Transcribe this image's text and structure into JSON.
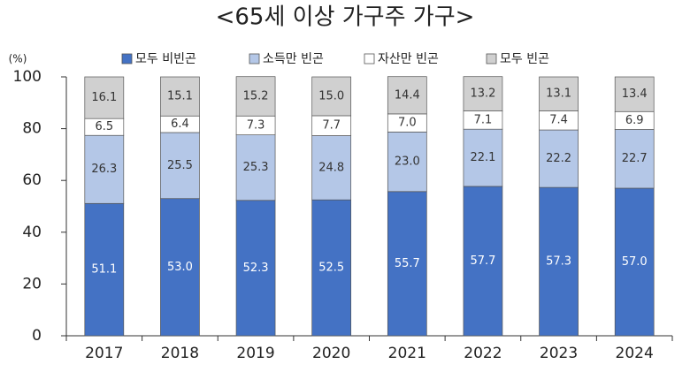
{
  "chart_data": {
    "type": "stacked_bar",
    "title": "<65세 이상 가구주 가구>",
    "y_label": "(%)",
    "categories": [
      "2017",
      "2018",
      "2019",
      "2020",
      "2021",
      "2022",
      "2023",
      "2024"
    ],
    "series": [
      {
        "name": "모두 비빈곤",
        "color": "#4472c4",
        "values": [
          51.1,
          53.0,
          52.3,
          52.5,
          55.7,
          57.7,
          57.3,
          57.0
        ],
        "value_labels": [
          "51.1",
          "53.0",
          "52.3",
          "52.5",
          "55.7",
          "57.7",
          "57.3",
          "57.0"
        ]
      },
      {
        "name": "소득만 빈곤",
        "color": "#b4c7e7",
        "values": [
          26.3,
          25.5,
          25.3,
          24.8,
          23.0,
          22.1,
          22.2,
          22.7
        ],
        "value_labels": [
          "26.3",
          "25.5",
          "25.3",
          "24.8",
          "23.0",
          "22.1",
          "22.2",
          "22.7"
        ]
      },
      {
        "name": "자산만 빈곤",
        "color": "#ffffff",
        "values": [
          6.5,
          6.4,
          7.3,
          7.7,
          7.0,
          7.1,
          7.4,
          6.9
        ],
        "value_labels": [
          "6.5",
          "6.4",
          "7.3",
          "7.7",
          "7.0",
          "7.1",
          "7.4",
          "6.9"
        ]
      },
      {
        "name": "모두 빈곤",
        "color": "#d0d0d0",
        "values": [
          16.1,
          15.1,
          15.2,
          15.0,
          14.4,
          13.2,
          13.1,
          13.4
        ],
        "value_labels": [
          "16.1",
          "15.1",
          "15.2",
          "15.0",
          "14.4",
          "13.2",
          "13.1",
          "13.4"
        ]
      }
    ],
    "ylim": [
      0,
      100
    ],
    "yticks": [
      0,
      20,
      40,
      60,
      80,
      100
    ],
    "grid": false
  }
}
